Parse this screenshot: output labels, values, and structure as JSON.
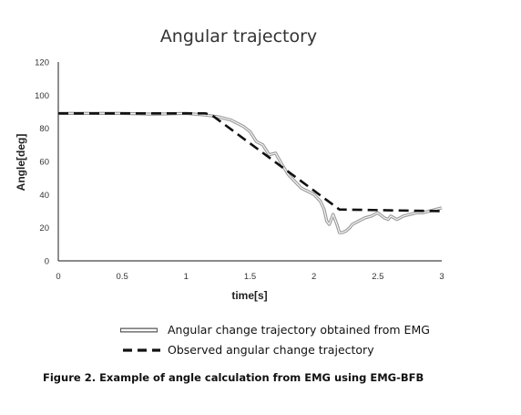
{
  "chart_data": {
    "type": "line",
    "title": "Angular trajectory",
    "xlabel": "time[s]",
    "ylabel": "Angle[deg]",
    "xlim": [
      0,
      3
    ],
    "ylim": [
      0,
      120
    ],
    "x_ticks": [
      0,
      0.5,
      1,
      1.5,
      2,
      2.5,
      3
    ],
    "x_tick_labels": [
      "0",
      "0.5",
      "1",
      "1.5",
      "2",
      "2.5",
      "3"
    ],
    "y_ticks": [
      0,
      20,
      40,
      60,
      80,
      100,
      120
    ],
    "y_tick_labels": [
      "0",
      "20",
      "40",
      "60",
      "80",
      "100",
      "120"
    ],
    "grid": false,
    "legend_position": "bottom",
    "series": [
      {
        "name": "Angular change trajectory obtained from EMG",
        "style": "double-line",
        "color": "#9a9a9a",
        "x": [
          0,
          0.25,
          0.5,
          0.75,
          1.0,
          1.15,
          1.25,
          1.35,
          1.45,
          1.5,
          1.55,
          1.6,
          1.65,
          1.7,
          1.75,
          1.8,
          1.85,
          1.9,
          1.95,
          2.0,
          2.05,
          2.08,
          2.1,
          2.12,
          2.15,
          2.18,
          2.2,
          2.22,
          2.25,
          2.28,
          2.3,
          2.35,
          2.4,
          2.45,
          2.5,
          2.55,
          2.58,
          2.6,
          2.65,
          2.7,
          2.75,
          2.8,
          2.85,
          2.9,
          2.95,
          3.0
        ],
        "y": [
          89,
          89,
          89,
          88.5,
          89,
          88,
          87,
          85,
          81,
          78,
          72,
          70,
          64,
          65,
          58,
          52,
          48,
          44,
          42,
          40,
          36,
          31,
          24,
          22,
          28,
          22,
          17,
          17,
          18,
          20,
          22,
          24,
          26,
          27,
          29,
          26,
          25,
          27,
          25,
          27,
          28,
          29,
          29,
          30,
          31,
          32
        ]
      },
      {
        "name": "Observed angular change trajectory",
        "style": "dashed",
        "color": "#111111",
        "x": [
          0,
          1.15,
          1.2,
          2.2,
          3.0
        ],
        "y": [
          89,
          89,
          88,
          31,
          30
        ]
      }
    ]
  },
  "caption": "Figure 2. Example of angle calculation from EMG using EMG-BFB"
}
